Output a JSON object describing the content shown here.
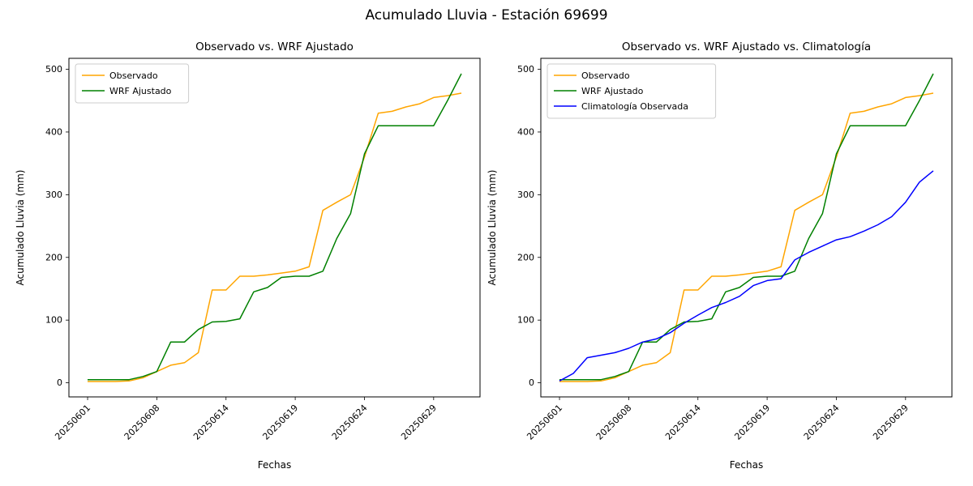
{
  "figure": {
    "title": "Acumulado Lluvia - Estación 69699",
    "background": "#ffffff"
  },
  "colors": {
    "observado": "#FFA500",
    "wrf_ajustado": "#008000",
    "climatologia": "#0000FF"
  },
  "chart_data": [
    {
      "type": "line",
      "title": "Observado vs. WRF Ajustado",
      "xlabel": "Fechas",
      "ylabel": "Acumulado Lluvia (mm)",
      "ylim": [
        -22.5,
        517.5
      ],
      "yticks": [
        0,
        100,
        200,
        300,
        400,
        500
      ],
      "x_tick_labels": [
        "20250601",
        "20250608",
        "20250614",
        "20250619",
        "20250624",
        "20250629"
      ],
      "x_tick_indices": [
        0,
        5,
        10,
        15,
        20,
        25
      ],
      "x_tick_rotation": 45,
      "n_points": 28,
      "grid": false,
      "legend_position": "upper left",
      "series": [
        {
          "name": "Observado",
          "color": "#FFA500",
          "values": [
            2,
            2,
            2,
            3,
            8,
            18,
            28,
            32,
            48,
            148,
            148,
            170,
            170,
            172,
            175,
            178,
            185,
            275,
            288,
            300,
            360,
            430,
            433,
            440,
            445,
            455,
            458,
            462
          ]
        },
        {
          "name": "WRF Ajustado",
          "color": "#008000",
          "values": [
            5,
            5,
            5,
            5,
            10,
            18,
            65,
            65,
            85,
            97,
            98,
            102,
            145,
            152,
            168,
            170,
            170,
            178,
            230,
            270,
            365,
            410,
            410,
            410,
            410,
            410,
            450,
            493
          ]
        }
      ]
    },
    {
      "type": "line",
      "title": "Observado vs. WRF Ajustado vs. Climatología",
      "xlabel": "Fechas",
      "ylabel": "Acumulado Lluvia (mm)",
      "ylim": [
        -22.5,
        517.5
      ],
      "yticks": [
        0,
        100,
        200,
        300,
        400,
        500
      ],
      "x_tick_labels": [
        "20250601",
        "20250608",
        "20250614",
        "20250619",
        "20250624",
        "20250629"
      ],
      "x_tick_indices": [
        0,
        5,
        10,
        15,
        20,
        25
      ],
      "x_tick_rotation": 45,
      "n_points": 28,
      "grid": false,
      "legend_position": "upper left",
      "series": [
        {
          "name": "Observado",
          "color": "#FFA500",
          "values": [
            2,
            2,
            2,
            3,
            8,
            18,
            28,
            32,
            48,
            148,
            148,
            170,
            170,
            172,
            175,
            178,
            185,
            275,
            288,
            300,
            360,
            430,
            433,
            440,
            445,
            455,
            458,
            462
          ]
        },
        {
          "name": "WRF Ajustado",
          "color": "#008000",
          "values": [
            5,
            5,
            5,
            5,
            10,
            18,
            65,
            65,
            85,
            97,
            98,
            102,
            145,
            152,
            168,
            170,
            170,
            178,
            230,
            270,
            365,
            410,
            410,
            410,
            410,
            410,
            450,
            493
          ]
        },
        {
          "name": "Climatología Observada",
          "color": "#0000FF",
          "values": [
            3,
            15,
            40,
            44,
            48,
            55,
            65,
            70,
            80,
            95,
            108,
            120,
            128,
            138,
            155,
            163,
            166,
            196,
            208,
            218,
            228,
            233,
            242,
            252,
            265,
            288,
            320,
            338
          ]
        }
      ]
    }
  ]
}
